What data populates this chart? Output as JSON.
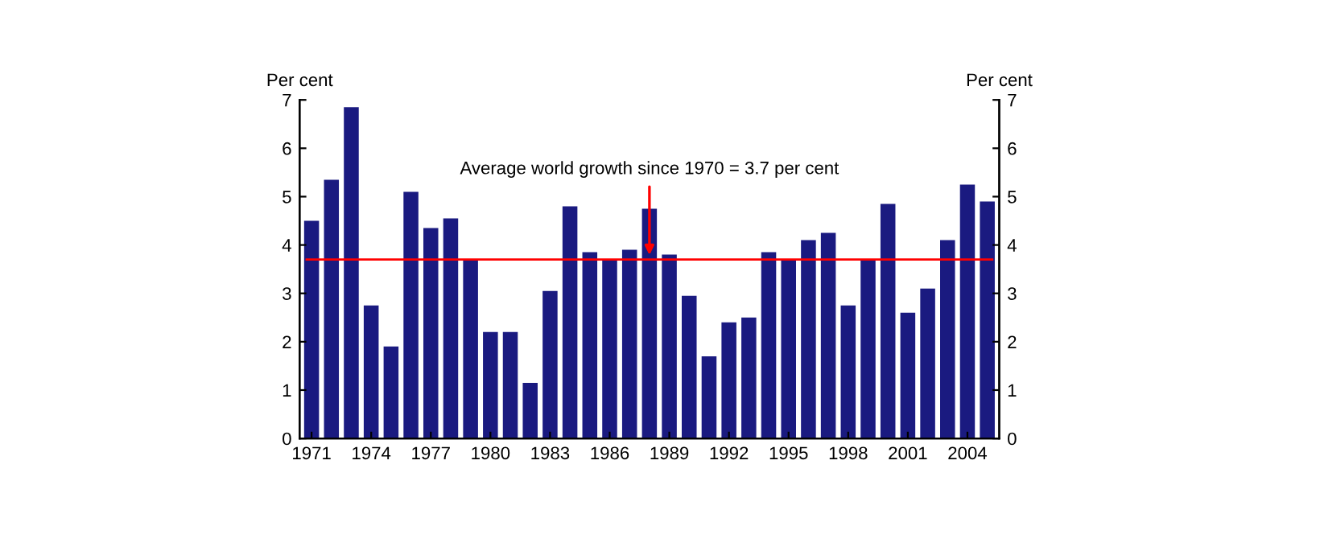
{
  "chart_data": {
    "type": "bar",
    "categories": [
      "1971",
      null,
      null,
      "1974",
      null,
      null,
      "1977",
      null,
      null,
      "1980",
      null,
      null,
      "1983",
      null,
      null,
      "1986",
      null,
      null,
      "1989",
      null,
      null,
      "1992",
      null,
      null,
      "1995",
      null,
      null,
      "1998",
      null,
      null,
      "2001",
      null,
      null,
      "2004",
      null
    ],
    "series": [
      {
        "color": "#1a1a80",
        "values": [
          4.5,
          5.35,
          6.85,
          2.75,
          1.9,
          5.1,
          4.35,
          4.55,
          3.7,
          2.2,
          2.2,
          1.15,
          3.05,
          4.8,
          3.85,
          3.7,
          3.9,
          4.75,
          3.8,
          2.95,
          1.7,
          2.4,
          2.5,
          3.85,
          3.7,
          4.1,
          4.25,
          2.75,
          3.7,
          4.85,
          2.6,
          3.1,
          4.1,
          5.25,
          4.9
        ]
      }
    ],
    "ylabel": "Per cent",
    "y2label": "Per cent",
    "ylim": [
      0,
      7
    ],
    "yticks": [
      0,
      1,
      2,
      3,
      4,
      5,
      6,
      7
    ],
    "y2lim": [
      0,
      7
    ],
    "y2ticks": [
      0,
      1,
      2,
      3,
      4,
      5,
      6,
      7
    ],
    "ref_lines": [
      {
        "axis": "y",
        "value": 3.7,
        "label": "Average world growth since 1970 = 3.7 per cent",
        "color": "#ff0000"
      }
    ],
    "grid": false,
    "legend": false
  }
}
